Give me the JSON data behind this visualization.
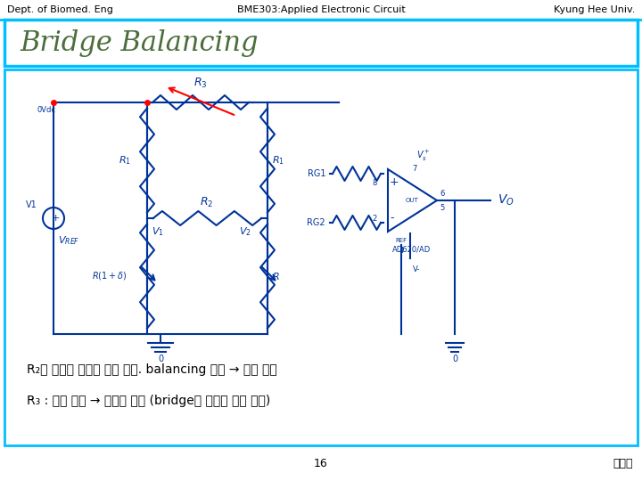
{
  "header_left": "Dept. of Biomed. Eng",
  "header_center": "BME303:Applied Electronic Circuit",
  "header_right": "Kyung Hee Univ.",
  "title": "Bridge Balancing",
  "title_color": "#4B6E3C",
  "footer_center": "16",
  "footer_right": "이규락",
  "header_line_color": "#00BFFF",
  "box_border_color": "#00BFFF",
  "title_box_bg": "#FFFFFF",
  "content_box_bg": "#FFFFFF",
  "bg_color": "#FFFFFF",
  "korean_line1": "R₂로 좌우의 저항을 같게 맞춤. balancing 조절 → 영점 조절",
  "korean_line2": "R₃ : 전류 제어 → 민감도 조절 (bridge에 흐르는 전류 제어)",
  "circuit_placeholder": true
}
